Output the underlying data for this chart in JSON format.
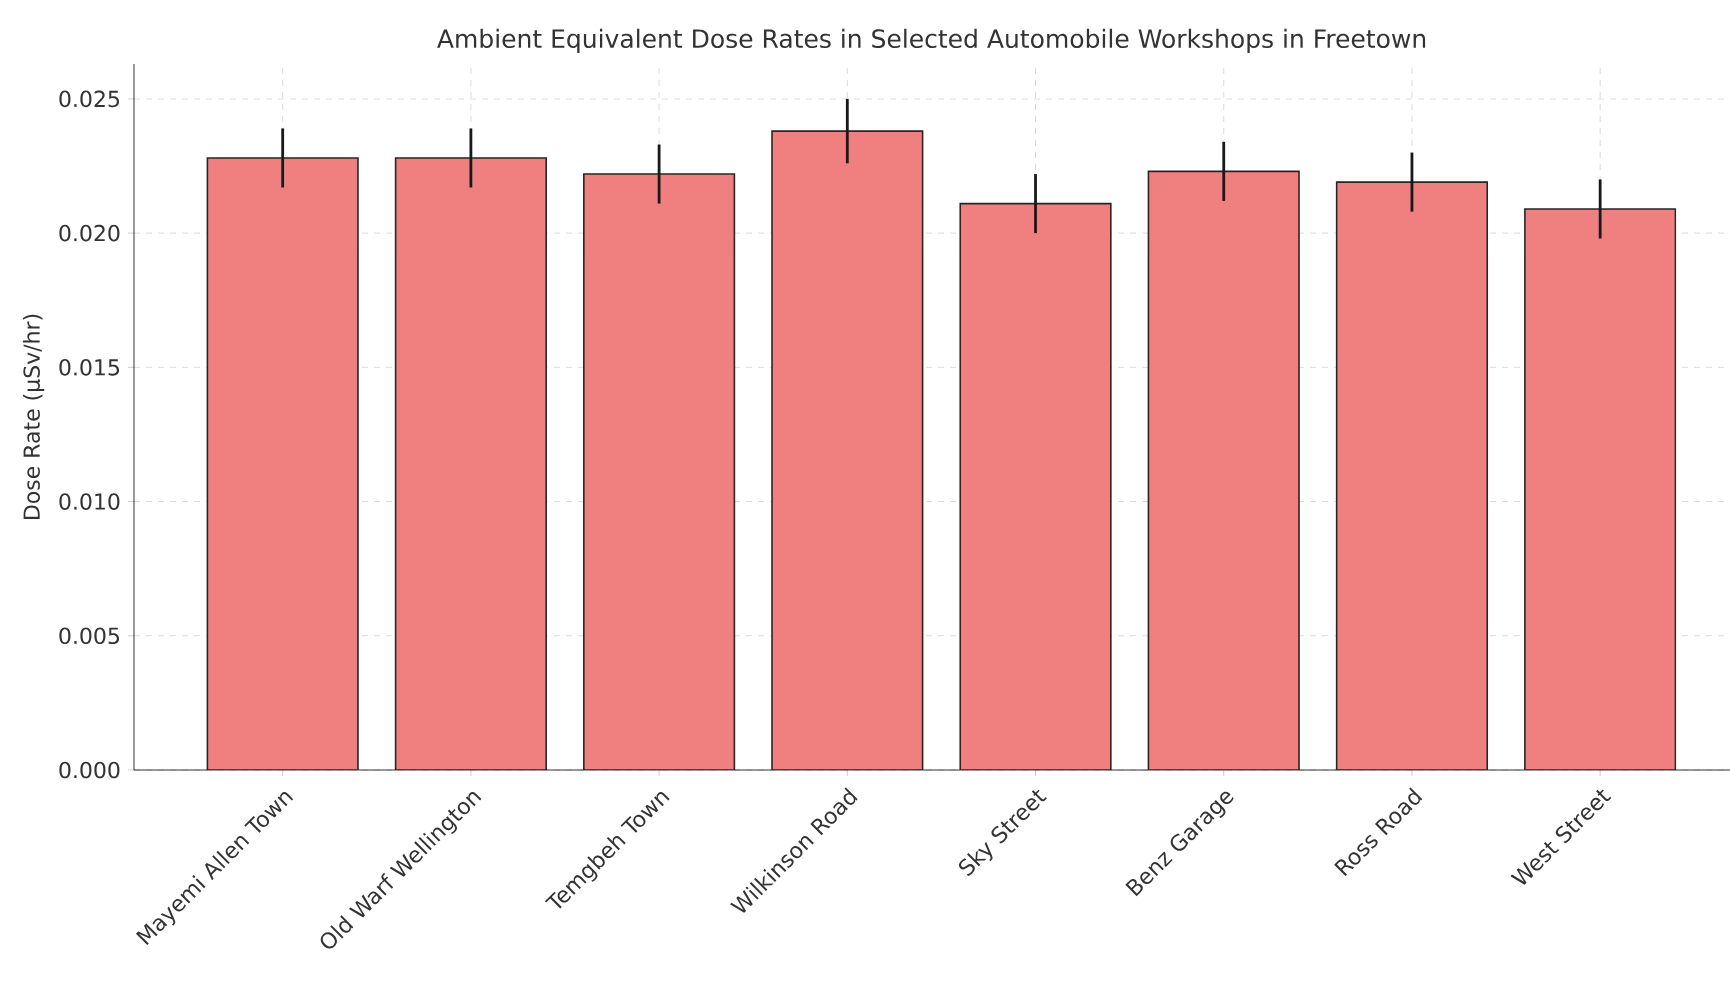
{
  "chart_data": {
    "type": "bar",
    "title": "Ambient Equivalent Dose Rates in Selected Automobile Workshops in Freetown",
    "ylabel": "Dose Rate (µSv/hr)",
    "categories": [
      "Mayemi Allen Town",
      "Old Warf Wellington",
      "Temgbeh Town",
      "Wilkinson Road",
      "Sky Street",
      "Benz Garage",
      "Ross Road",
      "West Street"
    ],
    "values": [
      0.0228,
      0.0228,
      0.0222,
      0.0238,
      0.0211,
      0.0223,
      0.0219,
      0.0209
    ],
    "errors": [
      0.0011,
      0.0011,
      0.0011,
      0.0012,
      0.0011,
      0.0011,
      0.0011,
      0.0011
    ],
    "color": "#f08080",
    "ylim": [
      0,
      0.0263
    ],
    "yticks": [
      {
        "value": 0,
        "label": "0.000"
      },
      {
        "value": 0.005,
        "label": "0.005"
      },
      {
        "value": 0.01,
        "label": "0.010"
      },
      {
        "value": 0.015,
        "label": "0.015"
      },
      {
        "value": 0.02,
        "label": "0.020"
      },
      {
        "value": 0.025,
        "label": "0.025"
      }
    ],
    "grid": true
  }
}
